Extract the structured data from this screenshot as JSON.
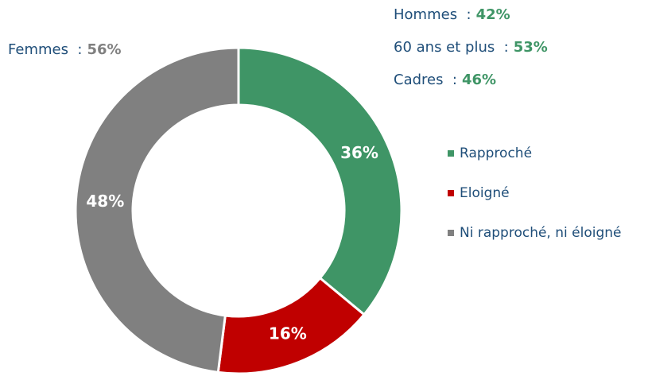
{
  "chart_data": {
    "type": "donut",
    "categories": [
      "Rapproché",
      "Eloigné",
      "Ni rapproché, ni éloigné"
    ],
    "series": [
      {
        "values": [
          36,
          16,
          48
        ],
        "value_labels": [
          "36%",
          "16%",
          "48%"
        ],
        "colors": [
          "#3f9566",
          "#c00000",
          "#808080"
        ]
      }
    ],
    "legend": "right",
    "annotations": [
      {
        "text": "Hommes  :",
        "value": 42,
        "value_label": "42%",
        "color": "#3f9566"
      },
      {
        "text": "60 ans et plus  :",
        "value": 53,
        "value_label": "53%",
        "color": "#3f9566"
      },
      {
        "text": "Cadres  :",
        "value": 46,
        "value_label": "46%",
        "color": "#3f9566"
      },
      {
        "text": "Femmes  :",
        "value": 56,
        "value_label": "56%",
        "color": "#808080"
      }
    ]
  }
}
